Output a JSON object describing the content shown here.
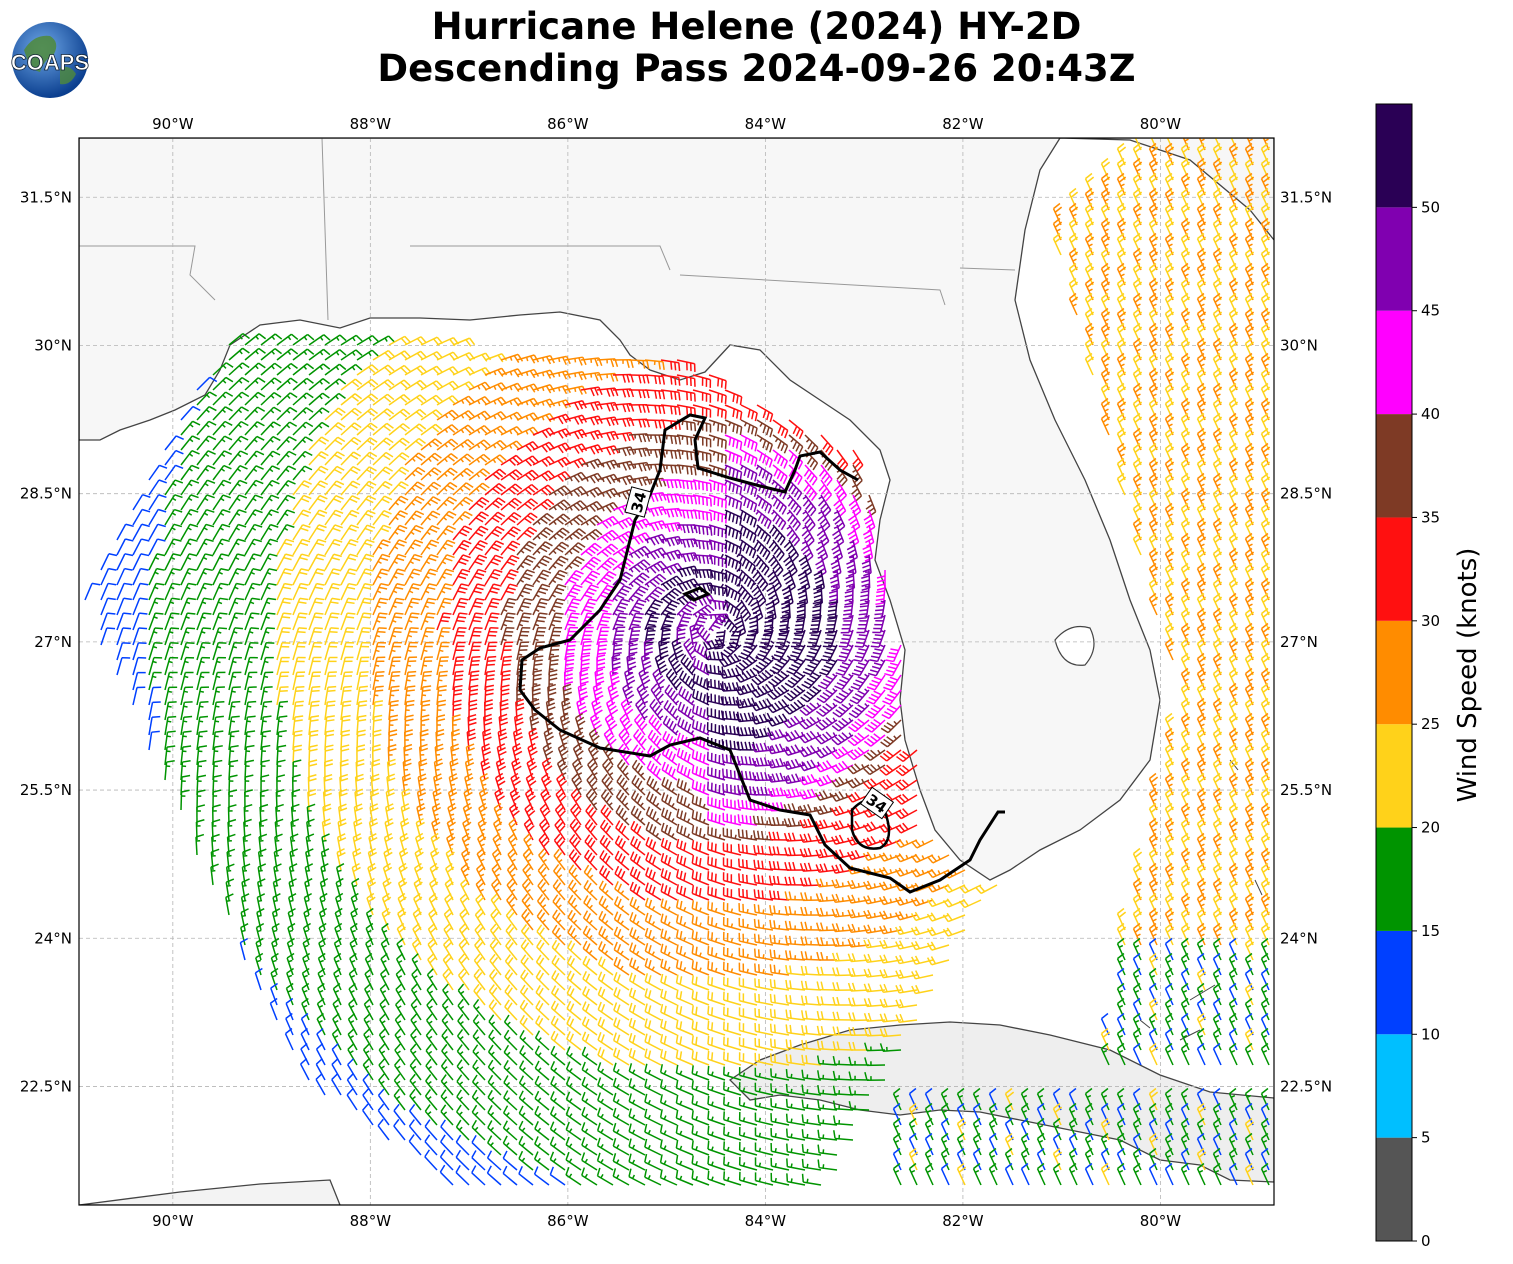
{
  "title": {
    "line1": "Hurricane Helene (2024) HY-2D",
    "line2": "Descending Pass 2024-09-26 20:43Z"
  },
  "logo": {
    "text": "COAPS",
    "icon": "globe-logo"
  },
  "map": {
    "lon_labels": [
      "90°W",
      "88°W",
      "86°W",
      "84°W",
      "82°W",
      "80°W"
    ],
    "lon_values": [
      -90,
      -88,
      -86,
      -84,
      -82,
      -80
    ],
    "lat_labels": [
      "31.5°N",
      "30°N",
      "28.5°N",
      "27°N",
      "25.5°N",
      "24°N",
      "22.5°N"
    ],
    "lat_values": [
      31.5,
      30,
      28.5,
      27,
      25.5,
      24,
      22.5
    ],
    "extent": {
      "lon_min": -90.95,
      "lon_max": -78.85,
      "lat_min": 21.3,
      "lat_max": 32.1
    },
    "contour_label": "34",
    "storm_center": {
      "lon": -84.5,
      "lat": 27.1
    }
  },
  "colorbar": {
    "label": "Wind Speed (knots)",
    "ticks": [
      "0",
      "5",
      "10",
      "15",
      "20",
      "25",
      "30",
      "35",
      "40",
      "45",
      "50"
    ],
    "bins": [
      {
        "min": 0,
        "max": 5,
        "color": "#555555"
      },
      {
        "min": 5,
        "max": 10,
        "color": "#00bfff"
      },
      {
        "min": 10,
        "max": 15,
        "color": "#0040ff"
      },
      {
        "min": 15,
        "max": 20,
        "color": "#009400"
      },
      {
        "min": 20,
        "max": 25,
        "color": "#ffd21a"
      },
      {
        "min": 25,
        "max": 30,
        "color": "#ff8c00"
      },
      {
        "min": 30,
        "max": 35,
        "color": "#ff1010"
      },
      {
        "min": 35,
        "max": 40,
        "color": "#7e3a25"
      },
      {
        "min": 40,
        "max": 45,
        "color": "#ff00ff"
      },
      {
        "min": 45,
        "max": 50,
        "color": "#8000b0"
      },
      {
        "min": 50,
        "max": 55,
        "color": "#2a0055"
      }
    ]
  }
}
